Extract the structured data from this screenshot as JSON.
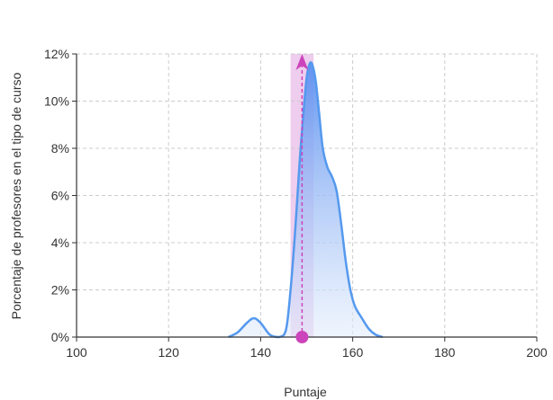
{
  "chart_data": {
    "type": "area",
    "xlabel": "Puntaje",
    "ylabel": "Porcentaje de profesores en el tipo de curso",
    "xlim": [
      100,
      200
    ],
    "ylim": [
      0,
      12
    ],
    "x_ticks": [
      {
        "value": 100,
        "label": "100"
      },
      {
        "value": 120,
        "label": "120"
      },
      {
        "value": 140,
        "label": "140"
      },
      {
        "value": 160,
        "label": "160"
      },
      {
        "value": 180,
        "label": "180"
      },
      {
        "value": 200,
        "label": "200"
      }
    ],
    "y_ticks": [
      {
        "value": 0,
        "label": "0%"
      },
      {
        "value": 2,
        "label": "2%"
      },
      {
        "value": 4,
        "label": "4%"
      },
      {
        "value": 6,
        "label": "6%"
      },
      {
        "value": 8,
        "label": "8%"
      },
      {
        "value": 10,
        "label": "10%"
      },
      {
        "value": 12,
        "label": "12%"
      }
    ],
    "grid": true,
    "series": [
      {
        "x": [
          133,
          135,
          137,
          138.5,
          140,
          142,
          144,
          145.5,
          146.5,
          147.5,
          148.5,
          149.3,
          150,
          150.7,
          151.3,
          152,
          152.7,
          153.5,
          154.5,
          155.5,
          156.5,
          157.5,
          158.5,
          159.5,
          160.5,
          162,
          163.5,
          165,
          166.5
        ],
        "y": [
          0,
          0.2,
          0.6,
          0.8,
          0.6,
          0.1,
          0,
          0.3,
          2.0,
          4.5,
          7.5,
          9.5,
          11,
          11.6,
          11.5,
          10.8,
          9.5,
          8.0,
          7.2,
          6.8,
          6.2,
          4.8,
          3.2,
          2.0,
          1.3,
          0.8,
          0.35,
          0.1,
          0
        ],
        "color": "#5599ee"
      }
    ],
    "highlight_band": {
      "x_min": 146.5,
      "x_max": 151.5,
      "color": "#e8bce8"
    },
    "marker": {
      "x": 149,
      "color": "#cc44bb"
    }
  }
}
